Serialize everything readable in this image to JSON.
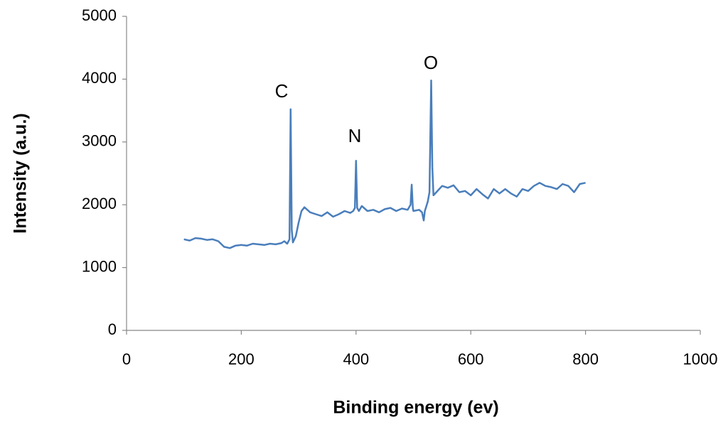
{
  "chart_data": {
    "type": "line",
    "x_label": "Binding energy (ev)",
    "y_label": "Intensity (a.u.)",
    "color": "#4a7ebb",
    "xlim": [
      0,
      1000
    ],
    "xticks": [
      0,
      200,
      400,
      600,
      800,
      1000
    ],
    "ylim": [
      0,
      5000
    ],
    "yticks": [
      0,
      1000,
      2000,
      3000,
      4000,
      5000
    ],
    "grid": false,
    "annotations": [
      "C",
      "N",
      "O"
    ],
    "x": [
      100,
      110,
      120,
      130,
      140,
      150,
      160,
      170,
      180,
      190,
      200,
      210,
      220,
      230,
      240,
      250,
      260,
      270,
      275,
      280,
      284,
      286,
      288,
      290,
      295,
      300,
      305,
      310,
      320,
      330,
      340,
      350,
      360,
      370,
      380,
      390,
      395,
      398,
      400,
      402,
      405,
      410,
      420,
      430,
      440,
      450,
      460,
      470,
      480,
      490,
      495,
      497,
      499,
      500,
      510,
      515,
      518,
      520,
      525,
      528,
      531,
      533,
      535,
      540,
      550,
      560,
      570,
      580,
      590,
      600,
      610,
      620,
      630,
      640,
      650,
      660,
      670,
      680,
      690,
      700,
      710,
      720,
      730,
      740,
      750,
      760,
      770,
      780,
      790,
      800
    ],
    "values": [
      1450,
      1430,
      1470,
      1460,
      1440,
      1450,
      1420,
      1330,
      1310,
      1350,
      1360,
      1350,
      1380,
      1370,
      1360,
      1380,
      1370,
      1390,
      1420,
      1380,
      1450,
      3520,
      1600,
      1400,
      1500,
      1720,
      1900,
      1960,
      1880,
      1850,
      1820,
      1880,
      1810,
      1850,
      1900,
      1870,
      1900,
      1950,
      2700,
      1950,
      1900,
      1980,
      1900,
      1920,
      1880,
      1930,
      1950,
      1900,
      1940,
      1920,
      2000,
      2320,
      1950,
      1900,
      1920,
      1880,
      1750,
      1900,
      2050,
      2200,
      3980,
      2600,
      2150,
      2200,
      2300,
      2270,
      2310,
      2200,
      2220,
      2150,
      2250,
      2170,
      2100,
      2250,
      2180,
      2250,
      2180,
      2130,
      2250,
      2220,
      2300,
      2350,
      2300,
      2280,
      2250,
      2330,
      2300,
      2200,
      2330,
      2350
    ]
  }
}
